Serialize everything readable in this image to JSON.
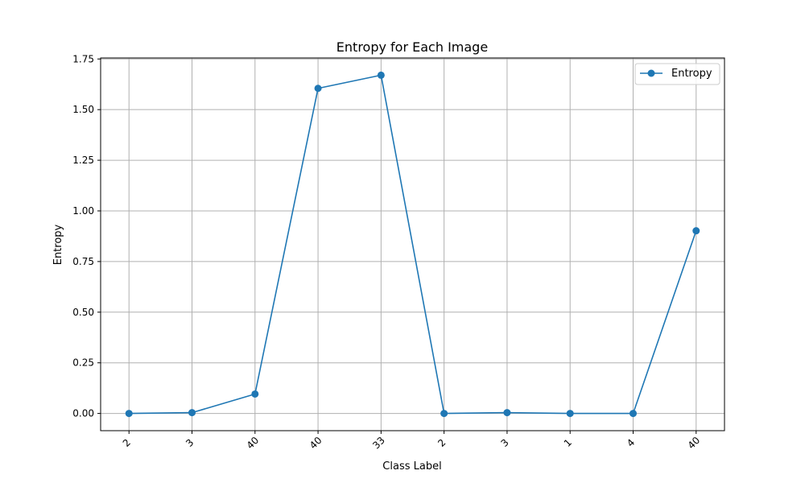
{
  "chart_data": {
    "type": "line",
    "title": "Entropy for Each Image",
    "xlabel": "Class Label",
    "ylabel": "Entropy",
    "categories": [
      "2",
      "3",
      "40",
      "40",
      "33",
      "2",
      "3",
      "1",
      "4",
      "40"
    ],
    "series": [
      {
        "name": "Entropy",
        "color": "#1f77b4",
        "marker": "circle",
        "values": [
          0.0,
          0.004,
          0.096,
          1.605,
          1.67,
          0.0,
          0.004,
          0.0,
          0.0,
          0.902
        ]
      }
    ],
    "ylim": [
      -0.085,
      1.755
    ],
    "yticks": [
      0.0,
      0.25,
      0.5,
      0.75,
      1.0,
      1.25,
      1.5,
      1.75
    ],
    "ytick_labels": [
      "0.00",
      "0.25",
      "0.50",
      "0.75",
      "1.00",
      "1.25",
      "1.50",
      "1.75"
    ],
    "xtick_rotation": 45,
    "grid": true,
    "grid_color": "#b0b0b0",
    "legend": {
      "position": "top-right",
      "entries": [
        "Entropy"
      ]
    }
  }
}
